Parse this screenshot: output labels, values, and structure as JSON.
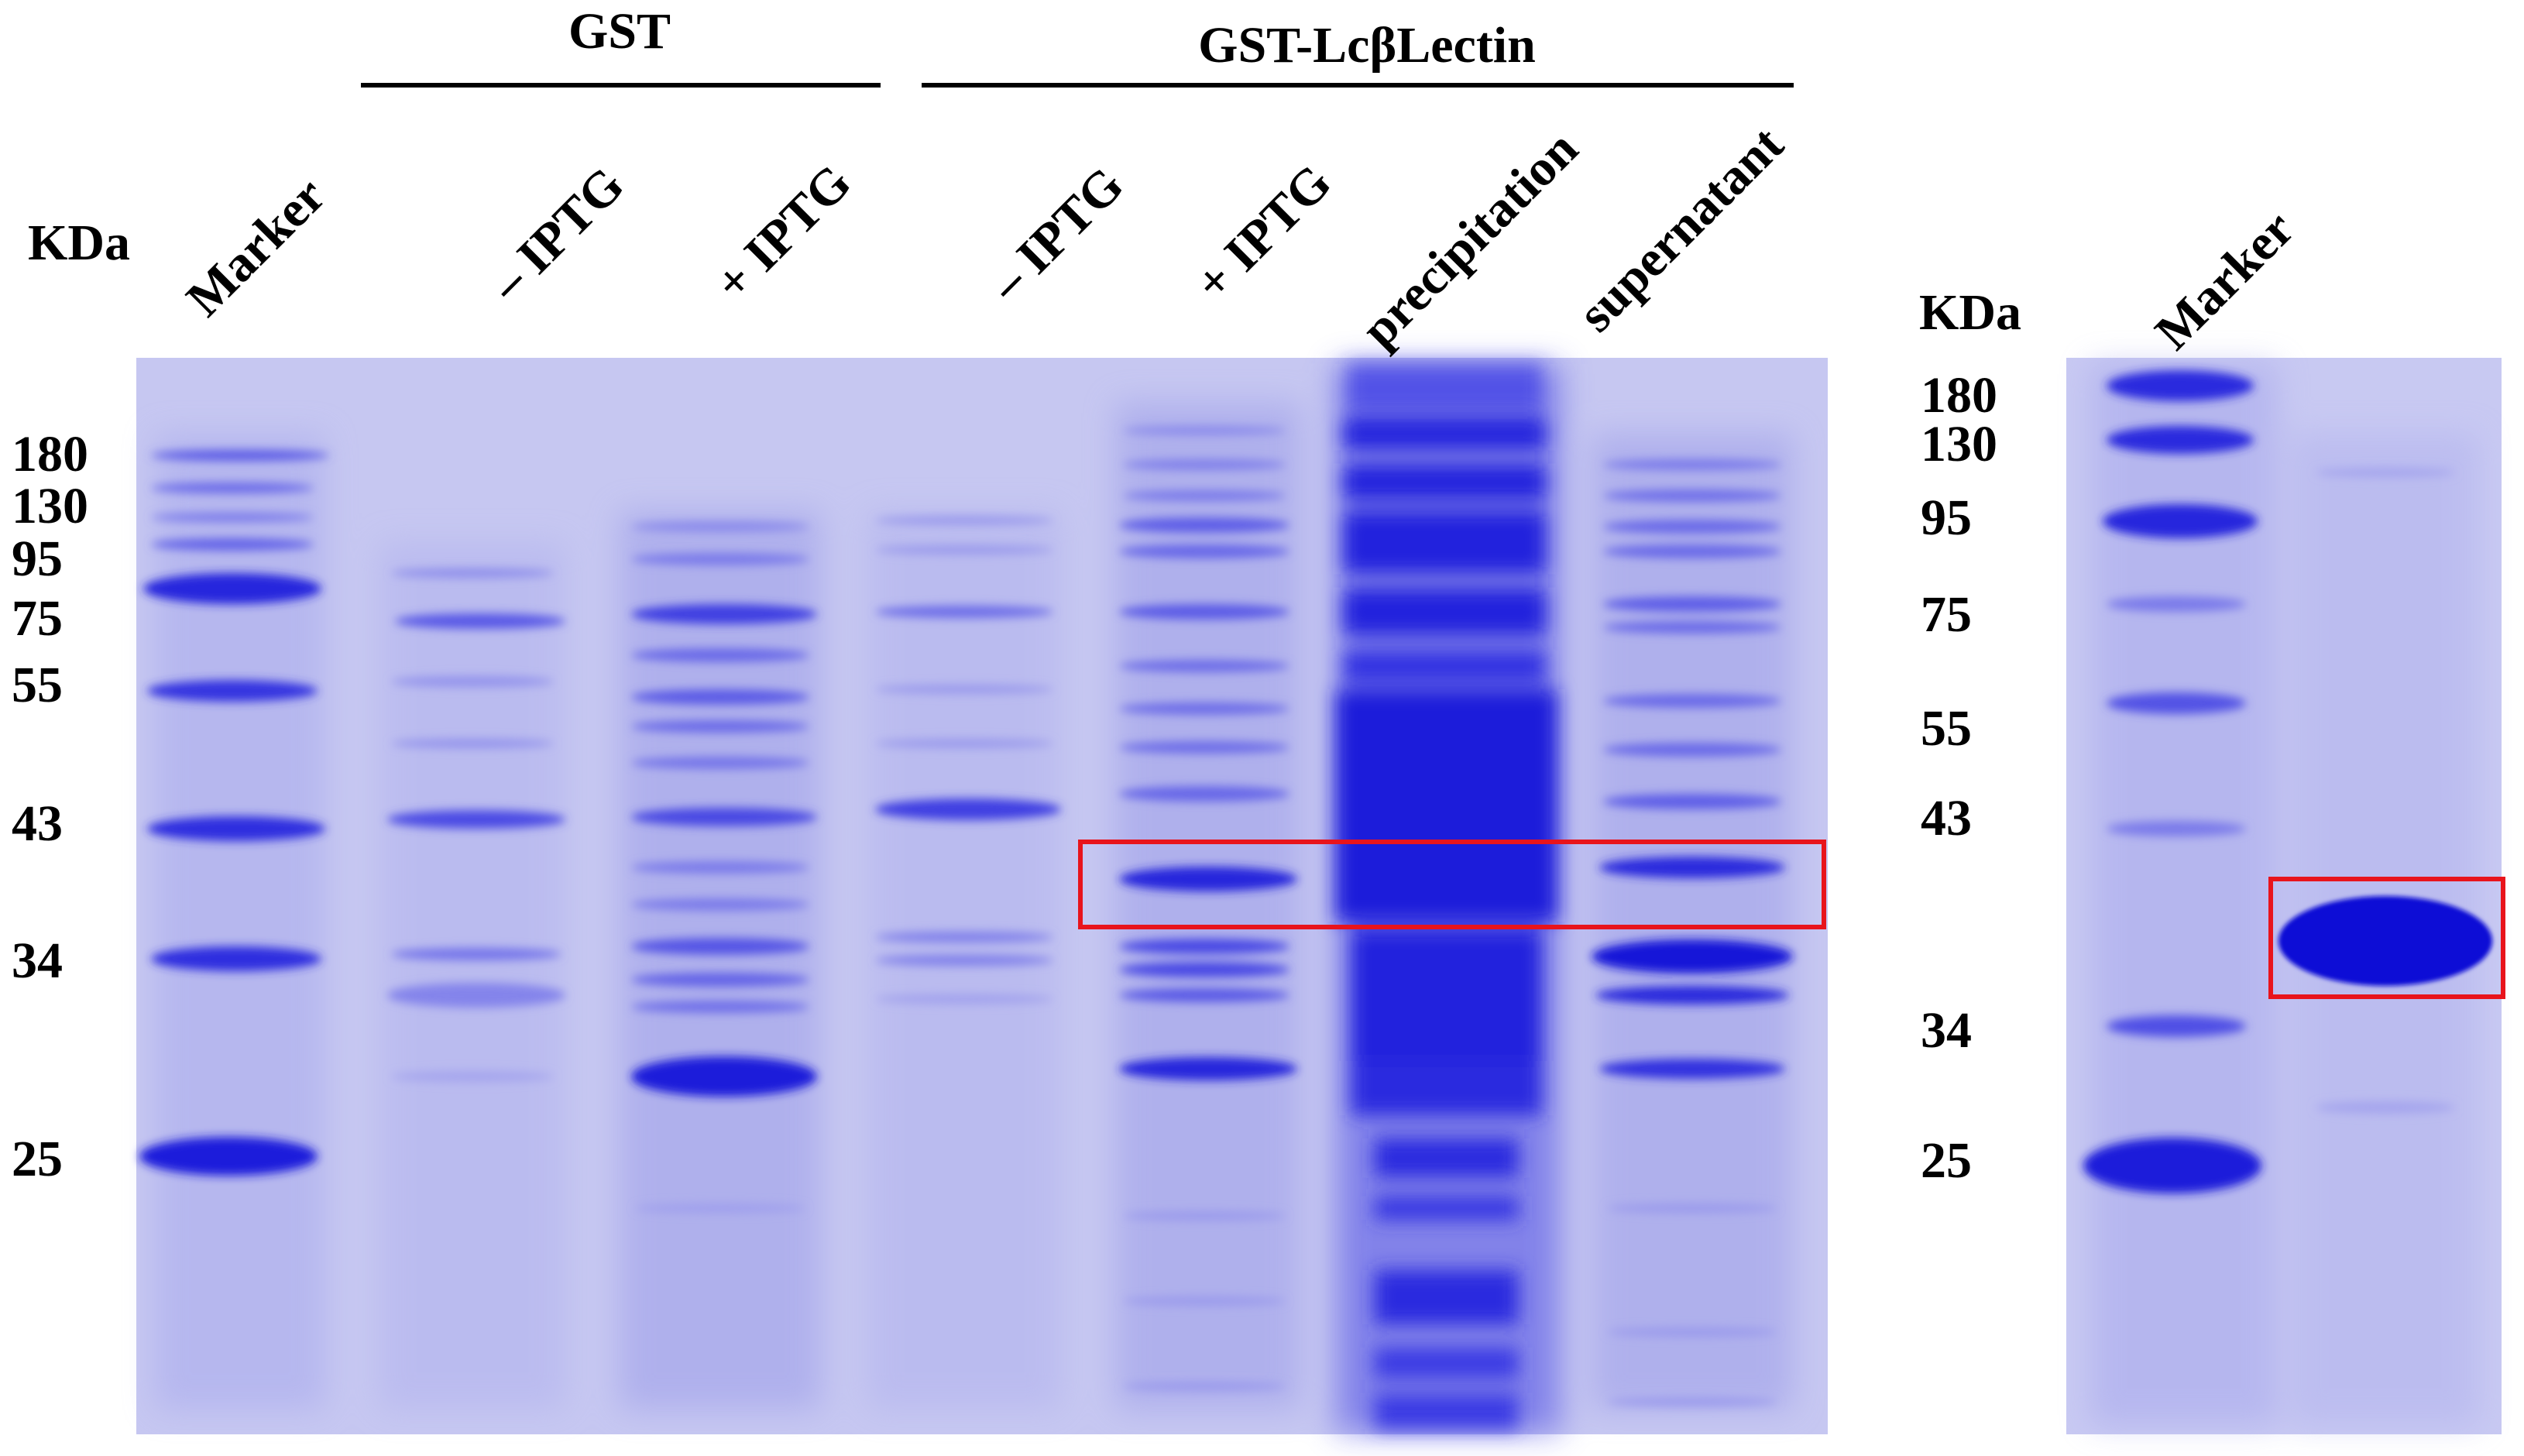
{
  "left_panel": {
    "group_gst": "GST",
    "group_fusion": "GST-LcβLectin",
    "unit": "KDa",
    "lanes": [
      "Marker",
      "– IPTG",
      "+ IPTG",
      "– IPTG",
      "+ IPTG",
      "precipitation",
      "supernatant"
    ],
    "mw_labels": [
      "180",
      "130",
      "95",
      "75",
      "55",
      "43",
      "34",
      "25"
    ]
  },
  "right_panel": {
    "unit": "KDa",
    "lanes": [
      "Marker"
    ],
    "mw_labels": [
      "180",
      "130",
      "95",
      "75",
      "55",
      "43",
      "34",
      "25"
    ]
  },
  "colors": {
    "gel_background": "#c4c5f0",
    "band": "#2b2be0",
    "highlight_box": "#e8141c"
  }
}
